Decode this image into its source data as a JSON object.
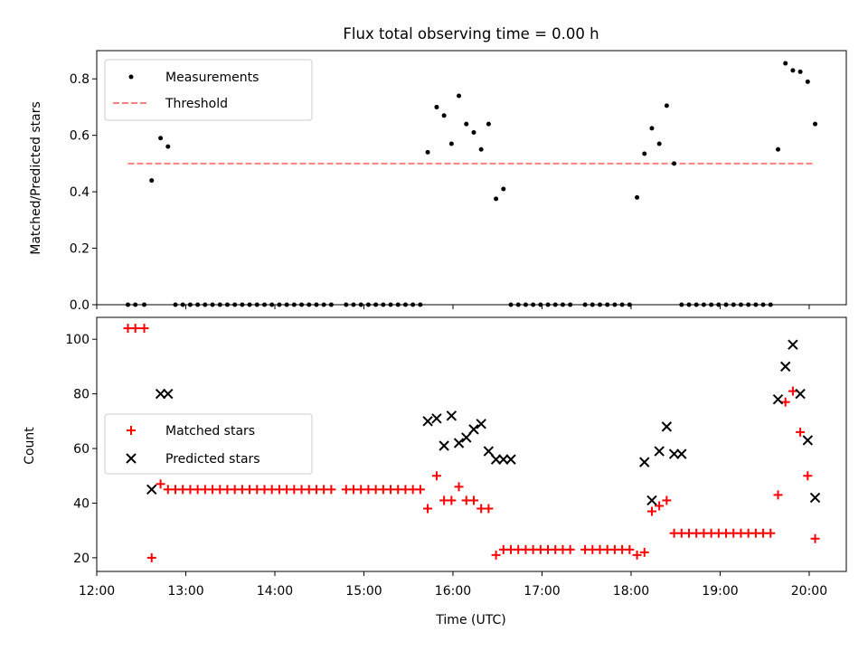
{
  "chart_data": [
    {
      "type": "scatter",
      "title": "Flux total observing time = 0.00 h",
      "xlabel": "",
      "ylabel": "Matched/Predicted stars",
      "ylim": [
        0,
        0.9
      ],
      "yticks": [
        {
          "v": 0.0,
          "label": "0.0"
        },
        {
          "v": 0.2,
          "label": "0.2"
        },
        {
          "v": 0.4,
          "label": "0.4"
        },
        {
          "v": 0.6,
          "label": "0.6"
        },
        {
          "v": 0.8,
          "label": "0.8"
        }
      ],
      "grid": false,
      "legend_position": "top-left",
      "series": [
        {
          "name": "Measurements",
          "marker": "dot",
          "color": "#000000",
          "x": [
            "12:21",
            "12:26",
            "12:32",
            "12:37",
            "12:43",
            "12:48",
            "12:53",
            "12:58",
            "13:03",
            "13:08",
            "13:13",
            "13:18",
            "13:23",
            "13:28",
            "13:33",
            "13:38",
            "13:43",
            "13:48",
            "13:53",
            "13:58",
            "14:03",
            "14:08",
            "14:13",
            "14:18",
            "14:23",
            "14:28",
            "14:33",
            "14:38",
            "14:48",
            "14:53",
            "14:58",
            "15:03",
            "15:08",
            "15:13",
            "15:18",
            "15:23",
            "15:28",
            "15:33",
            "15:38",
            "15:43",
            "15:49",
            "15:54",
            "15:59",
            "16:04",
            "16:09",
            "16:14",
            "16:19",
            "16:24",
            "16:29",
            "16:34",
            "16:39",
            "16:44",
            "16:49",
            "16:54",
            "16:59",
            "17:04",
            "17:09",
            "17:14",
            "17:19",
            "17:29",
            "17:34",
            "17:39",
            "17:44",
            "17:49",
            "17:54",
            "17:59",
            "18:04",
            "18:09",
            "18:14",
            "18:19",
            "18:24",
            "18:29",
            "18:34",
            "18:39",
            "18:44",
            "18:49",
            "18:54",
            "18:59",
            "19:04",
            "19:09",
            "19:14",
            "19:19",
            "19:24",
            "19:29",
            "19:34",
            "19:39",
            "19:44",
            "19:49",
            "19:54",
            "19:59",
            "20:04"
          ],
          "y": [
            0,
            0,
            0,
            0.44,
            0.59,
            0.56,
            0,
            0,
            0,
            0,
            0,
            0,
            0,
            0,
            0,
            0,
            0,
            0,
            0,
            0,
            0,
            0,
            0,
            0,
            0,
            0,
            0,
            0,
            0,
            0,
            0,
            0,
            0,
            0,
            0,
            0,
            0,
            0,
            0,
            0.54,
            0.7,
            0.67,
            0.57,
            0.74,
            0.64,
            0.61,
            0.55,
            0.64,
            0.375,
            0.41,
            0,
            0,
            0,
            0,
            0,
            0,
            0,
            0,
            0,
            0,
            0,
            0,
            0,
            0,
            0,
            0,
            0.38,
            0.535,
            0.625,
            0.57,
            0.705,
            0.5,
            0,
            0,
            0,
            0,
            0,
            0,
            0,
            0,
            0,
            0,
            0,
            0,
            0,
            0.55,
            0.855,
            0.83,
            0.825,
            0.79,
            0.64
          ]
        },
        {
          "name": "Threshold",
          "line": "dashed",
          "color": "#ff7f7f",
          "x": [
            "12:21",
            "20:04"
          ],
          "y": [
            0.5,
            0.5
          ]
        }
      ]
    },
    {
      "type": "scatter",
      "title": "",
      "xlabel": "Time (UTC)",
      "ylabel": "Count",
      "ylim": [
        15,
        108
      ],
      "xlim": [
        "12:00",
        "20:25"
      ],
      "yticks": [
        {
          "v": 20,
          "label": "20"
        },
        {
          "v": 40,
          "label": "40"
        },
        {
          "v": 60,
          "label": "60"
        },
        {
          "v": 80,
          "label": "80"
        },
        {
          "v": 100,
          "label": "100"
        }
      ],
      "xticks": [
        "12:00",
        "13:00",
        "14:00",
        "15:00",
        "16:00",
        "17:00",
        "18:00",
        "19:00",
        "20:00"
      ],
      "grid": false,
      "legend_position": "center-left",
      "series": [
        {
          "name": "Matched stars",
          "marker": "plus",
          "color": "#ff0000",
          "x": [
            "12:21",
            "12:26",
            "12:32",
            "12:37",
            "12:43",
            "12:48",
            "12:53",
            "12:58",
            "13:03",
            "13:08",
            "13:13",
            "13:18",
            "13:23",
            "13:28",
            "13:33",
            "13:38",
            "13:43",
            "13:48",
            "13:53",
            "13:58",
            "14:03",
            "14:08",
            "14:13",
            "14:18",
            "14:23",
            "14:28",
            "14:33",
            "14:38",
            "14:48",
            "14:53",
            "14:58",
            "15:03",
            "15:08",
            "15:13",
            "15:18",
            "15:23",
            "15:28",
            "15:33",
            "15:38",
            "15:43",
            "15:49",
            "15:54",
            "15:59",
            "16:04",
            "16:09",
            "16:14",
            "16:19",
            "16:24",
            "16:29",
            "16:34",
            "16:39",
            "16:44",
            "16:49",
            "16:54",
            "16:59",
            "17:04",
            "17:09",
            "17:14",
            "17:19",
            "17:29",
            "17:34",
            "17:39",
            "17:44",
            "17:49",
            "17:54",
            "17:59",
            "18:04",
            "18:09",
            "18:14",
            "18:19",
            "18:24",
            "18:29",
            "18:34",
            "18:39",
            "18:44",
            "18:49",
            "18:54",
            "18:59",
            "19:04",
            "19:09",
            "19:14",
            "19:19",
            "19:24",
            "19:29",
            "19:34",
            "19:39",
            "19:44",
            "19:49",
            "19:54",
            "19:59",
            "20:04"
          ],
          "y": [
            104,
            104,
            104,
            20,
            47,
            45,
            45,
            45,
            45,
            45,
            45,
            45,
            45,
            45,
            45,
            45,
            45,
            45,
            45,
            45,
            45,
            45,
            45,
            45,
            45,
            45,
            45,
            45,
            45,
            45,
            45,
            45,
            45,
            45,
            45,
            45,
            45,
            45,
            45,
            38,
            50,
            41,
            41,
            46,
            41,
            41,
            38,
            38,
            21,
            23,
            23,
            23,
            23,
            23,
            23,
            23,
            23,
            23,
            23,
            23,
            23,
            23,
            23,
            23,
            23,
            23,
            21,
            22,
            37,
            39,
            41,
            29,
            29,
            29,
            29,
            29,
            29,
            29,
            29,
            29,
            29,
            29,
            29,
            29,
            29,
            43,
            77,
            81,
            66,
            50,
            27
          ]
        },
        {
          "name": "Predicted stars",
          "marker": "x",
          "color": "#000000",
          "x": [
            "12:37",
            "12:43",
            "12:48",
            "15:43",
            "15:49",
            "15:54",
            "15:59",
            "16:04",
            "16:09",
            "16:14",
            "16:19",
            "16:24",
            "16:29",
            "16:34",
            "16:39",
            "18:09",
            "18:14",
            "18:19",
            "18:24",
            "18:29",
            "18:34",
            "19:39",
            "19:44",
            "19:49",
            "19:54",
            "19:59",
            "20:04"
          ],
          "y": [
            45,
            80,
            80,
            70,
            71,
            61,
            72,
            62,
            64,
            67,
            69,
            59,
            56,
            56,
            56,
            55,
            41,
            59,
            68,
            58,
            58,
            78,
            90,
            98,
            80,
            63,
            42
          ]
        }
      ]
    }
  ]
}
